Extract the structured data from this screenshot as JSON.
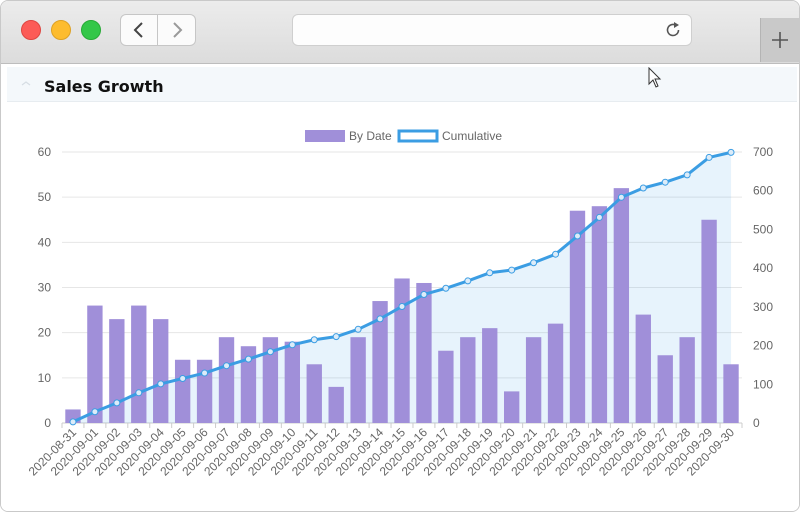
{
  "panel": {
    "title": "Sales Growth"
  },
  "colors": {
    "bar": "#a08fd9",
    "line": "#3b9de3",
    "area": "rgba(59,157,227,0.12)",
    "grid": "#e6e6e6"
  },
  "icons": {
    "back": "chevron-left-icon",
    "forward": "chevron-right-icon",
    "reload": "reload-icon",
    "new_tab": "plus-icon",
    "cursor": "mouse-pointer-icon"
  },
  "chart_data": {
    "type": "bar",
    "title": "",
    "legend_position": "top",
    "grid": true,
    "categories": [
      "2020-08-31",
      "2020-09-01",
      "2020-09-02",
      "2020-09-03",
      "2020-09-04",
      "2020-09-05",
      "2020-09-06",
      "2020-09-07",
      "2020-09-08",
      "2020-09-09",
      "2020-09-10",
      "2020-09-11",
      "2020-09-12",
      "2020-09-13",
      "2020-09-14",
      "2020-09-15",
      "2020-09-16",
      "2020-09-17",
      "2020-09-18",
      "2020-09-19",
      "2020-09-20",
      "2020-09-21",
      "2020-09-22",
      "2020-09-23",
      "2020-09-24",
      "2020-09-25",
      "2020-09-26",
      "2020-09-27",
      "2020-09-28",
      "2020-09-29",
      "2020-09-30"
    ],
    "y_left": {
      "min": 0,
      "max": 60,
      "ticks": [
        0,
        10,
        20,
        30,
        40,
        50,
        60
      ]
    },
    "y_right": {
      "min": 0,
      "max": 700,
      "ticks": [
        0,
        100,
        200,
        300,
        400,
        500,
        600,
        700
      ]
    },
    "series": [
      {
        "name": "By Date",
        "type": "bar",
        "axis": "left",
        "values": [
          3,
          26,
          23,
          26,
          23,
          14,
          14,
          19,
          17,
          19,
          18,
          13,
          8,
          19,
          27,
          32,
          31,
          16,
          19,
          21,
          7,
          19,
          22,
          47,
          48,
          52,
          24,
          15,
          19,
          45,
          13
        ]
      },
      {
        "name": "Cumulative",
        "type": "area-line",
        "axis": "right",
        "values": [
          3,
          29,
          52,
          78,
          101,
          115,
          129,
          148,
          165,
          184,
          202,
          215,
          223,
          242,
          269,
          301,
          332,
          348,
          367,
          388,
          395,
          414,
          436,
          483,
          531,
          583,
          607,
          622,
          641,
          686,
          699
        ]
      }
    ]
  }
}
